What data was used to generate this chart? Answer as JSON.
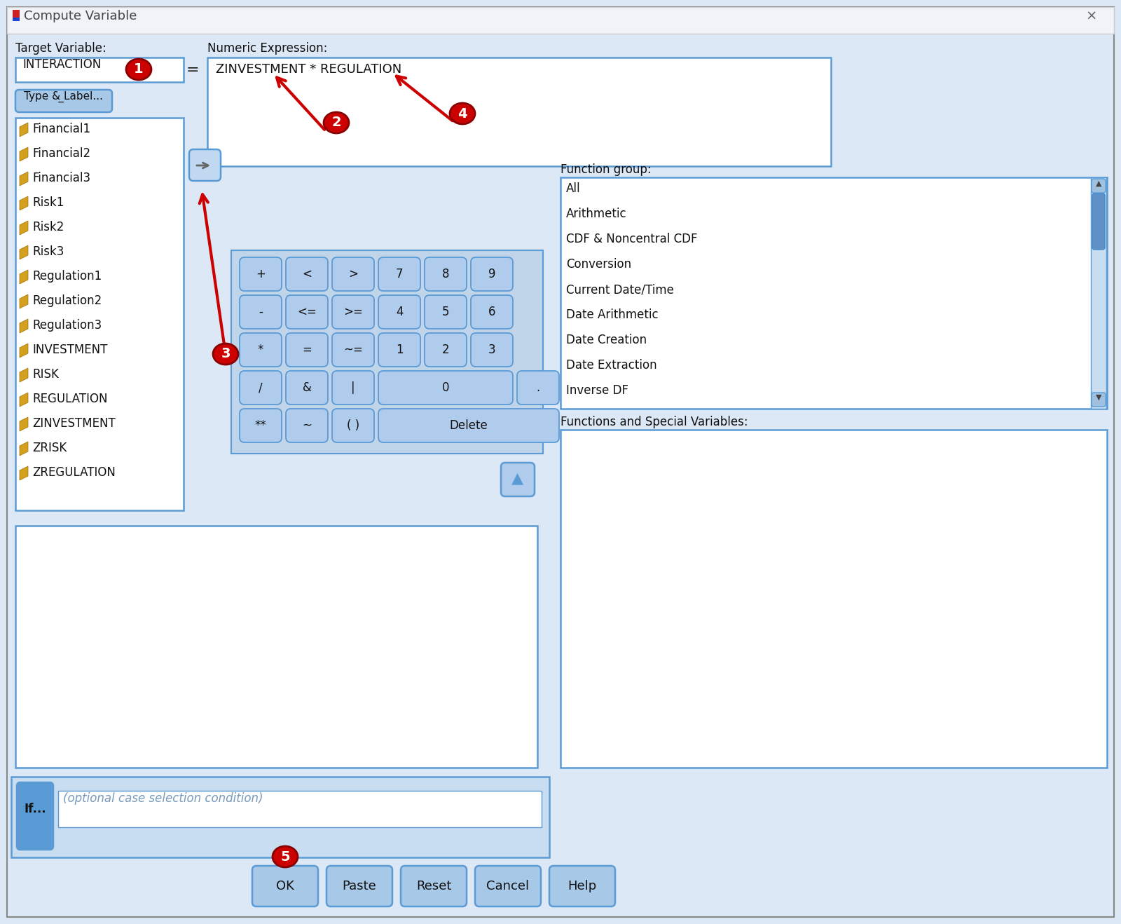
{
  "title": "Compute Variable",
  "bg_color": "#dce8f5",
  "dialog_bg": "#dce8f5",
  "titlebar_bg": "#f0f4f8",
  "white": "#ffffff",
  "box_border": "#5b9bd5",
  "box_border2": "#4488cc",
  "button_bg": "#a8c8e8",
  "button_bg2": "#b8d4ee",
  "dark_text": "#1a1a1a",
  "label_text": "#111111",
  "gray_text": "#555555",
  "target_variable_label": "Target Variable:",
  "target_variable_value": "INTERACTION",
  "type_label_btn": "Type & Label...",
  "numeric_expr_label": "Numeric Expression:",
  "numeric_expr_value": "ZINVESTMENT * REGULATION",
  "variables": [
    "Financial1",
    "Financial2",
    "Financial3",
    "Risk1",
    "Risk2",
    "Risk3",
    "Regulation1",
    "Regulation2",
    "Regulation3",
    "INVESTMENT",
    "RISK",
    "REGULATION",
    "ZINVESTMENT",
    "ZRISK",
    "ZREGULATION"
  ],
  "function_group_label": "Function group:",
  "function_group_items": [
    "All",
    "Arithmetic",
    "CDF & Noncentral CDF",
    "Conversion",
    "Current Date/Time",
    "Date Arithmetic",
    "Date Creation",
    "Date Extraction",
    "Inverse DF"
  ],
  "functions_special_label": "Functions and Special Variables:",
  "if_btn_text": "If...",
  "if_text": "(optional case selection condition)",
  "bottom_buttons": [
    "OK",
    "Paste",
    "Reset",
    "Cancel",
    "Help"
  ],
  "circle_color": "#cc0000",
  "circle_text_color": "#ffffff",
  "arrow_color": "#cc0000"
}
